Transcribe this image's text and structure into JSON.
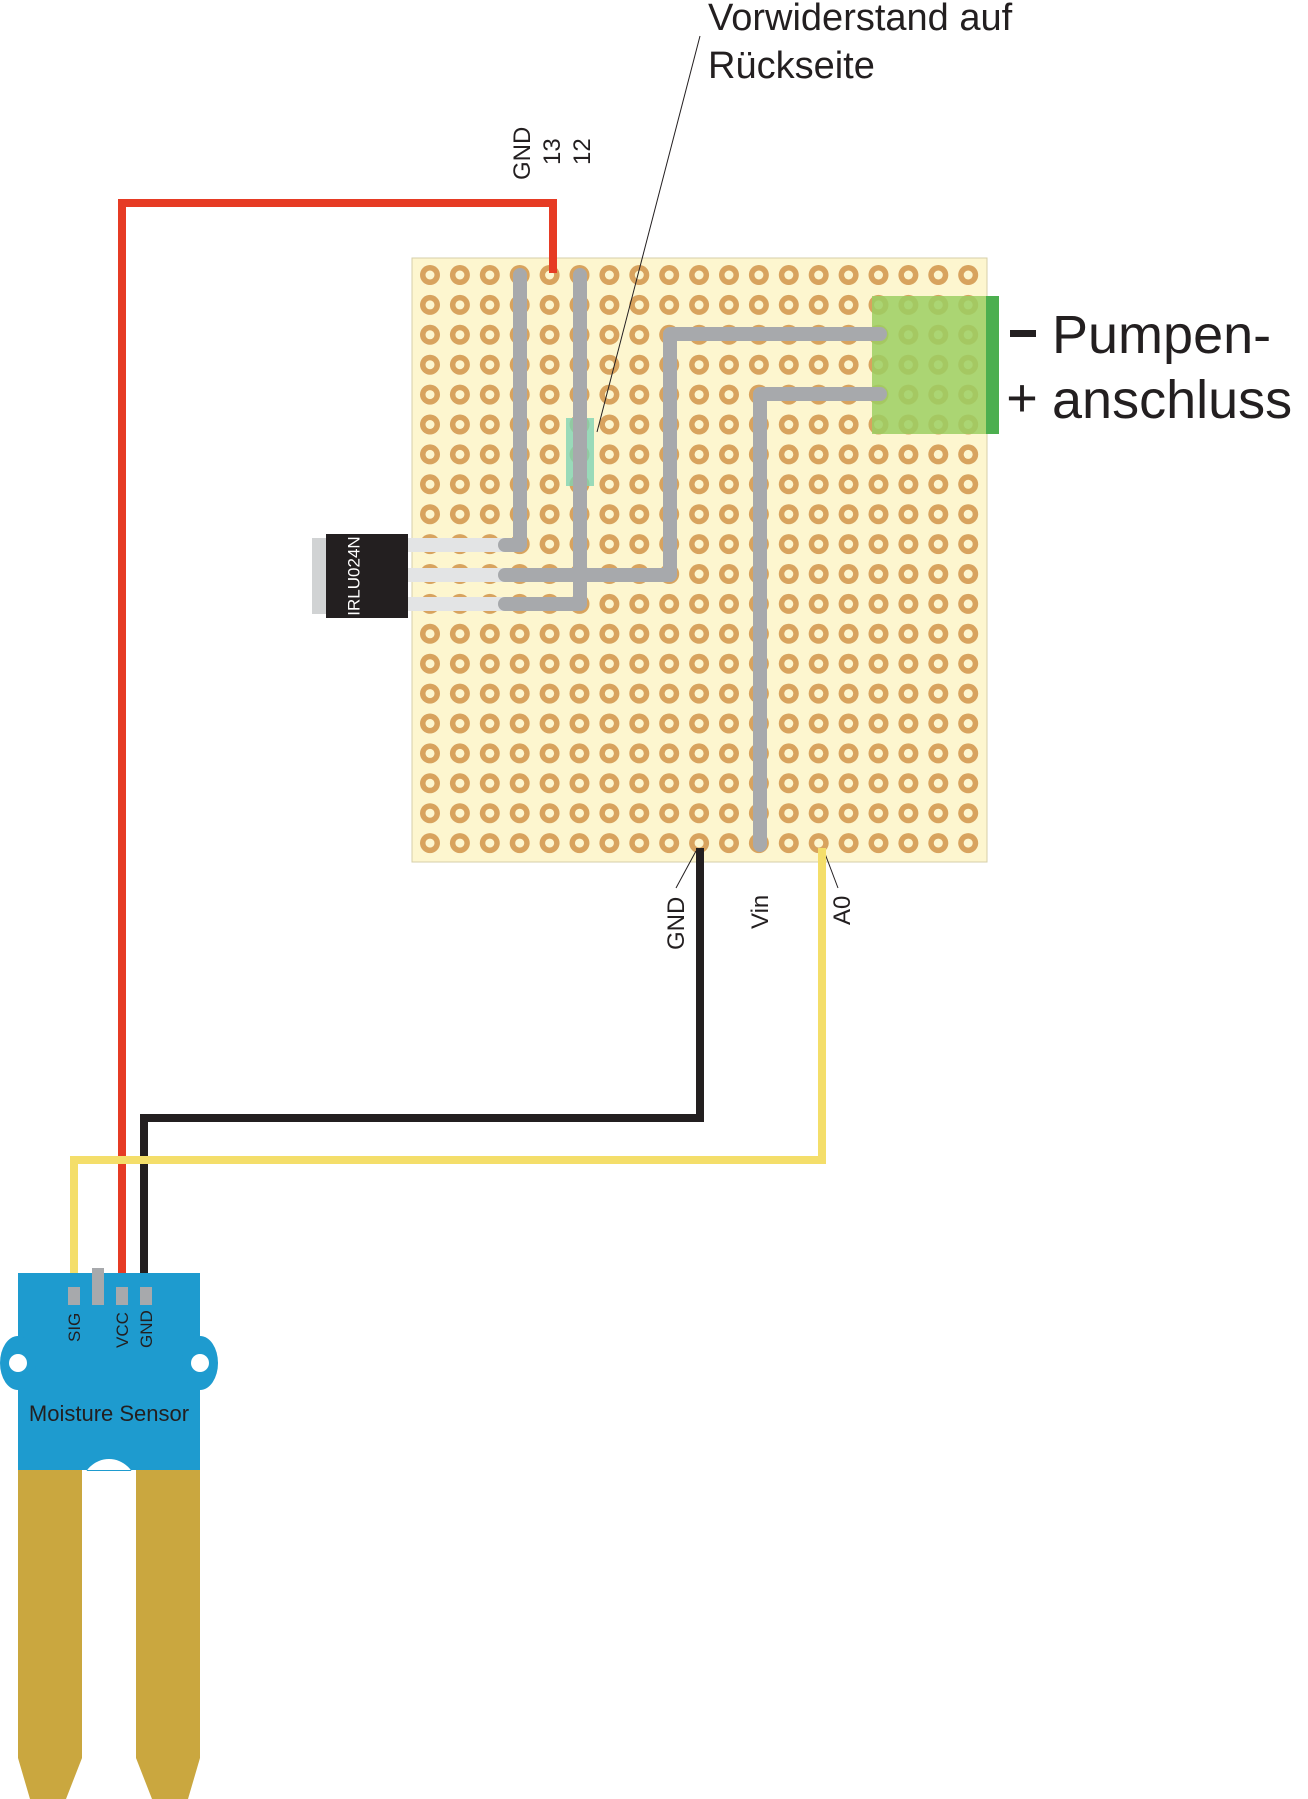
{
  "annotation": {
    "resistor_note_line1": "Vorwiderstand auf",
    "resistor_note_line2": "Rückseite"
  },
  "header_pins": {
    "gnd": "GND",
    "pin13": "13",
    "pin12": "12"
  },
  "transistor": {
    "label": "IRLU024N"
  },
  "pump": {
    "minus_symbol": "−",
    "plus_symbol": "+",
    "label_line1": "Pumpen-",
    "label_line2": "anschluss"
  },
  "bottom_pins": {
    "gnd": "GND",
    "vin": "Vin",
    "a0": "A0"
  },
  "sensor": {
    "title": "Moisture Sensor",
    "pin_sig": "SIG",
    "pin_vcc": "VCC",
    "pin_gnd": "GND"
  },
  "colors": {
    "board": "#fdf6cf",
    "pad": "#d8a35e",
    "trace": "#a7a9ac",
    "wire_red": "#e63b24",
    "wire_black": "#231f20",
    "wire_yellow": "#f4de6a",
    "sensor_blue": "#1e9bcf",
    "probe_gold": "#caa73f",
    "terminal_green": "#4caf4f"
  }
}
